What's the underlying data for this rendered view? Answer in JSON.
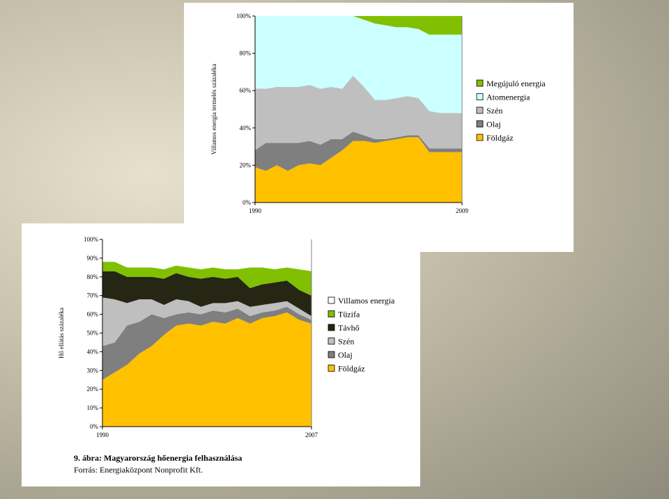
{
  "chart_data": [
    {
      "type": "area",
      "stacked": true,
      "ylabel": "Villamos energia termelés százaléka",
      "x": [
        1990,
        1991,
        1992,
        1993,
        1994,
        1995,
        1996,
        1997,
        1998,
        1999,
        2000,
        2001,
        2002,
        2003,
        2004,
        2005,
        2006,
        2007,
        2008,
        2009
      ],
      "x_tick_labels": [
        "1990",
        "2009"
      ],
      "y_tick_labels": [
        "0%",
        "20%",
        "40%",
        "60%",
        "80%",
        "100%"
      ],
      "ylim": [
        0,
        100
      ],
      "legend_position": "right",
      "series": [
        {
          "name": "Földgáz",
          "color": "#FFC000",
          "values": [
            19,
            17,
            20,
            17,
            20,
            21,
            20,
            24,
            28,
            33,
            33,
            32,
            33,
            34,
            35,
            35,
            27,
            27,
            27,
            27
          ]
        },
        {
          "name": "Olaj",
          "color": "#7F7F7F",
          "values": [
            9,
            15,
            12,
            15,
            12,
            12,
            11,
            10,
            6,
            5,
            3,
            2,
            1,
            1,
            1,
            1,
            2,
            2,
            2,
            2
          ]
        },
        {
          "name": "Szén",
          "color": "#BFBFBF",
          "values": [
            33,
            29,
            30,
            30,
            30,
            30,
            30,
            28,
            27,
            30,
            26,
            21,
            21,
            21,
            21,
            20,
            20,
            19,
            19,
            19
          ]
        },
        {
          "name": "Atomenergia",
          "color": "#CCFFFF",
          "values": [
            39,
            39,
            38,
            38,
            38,
            37,
            39,
            38,
            39,
            32,
            36,
            41,
            40,
            38,
            37,
            37,
            41,
            42,
            42,
            42
          ]
        },
        {
          "name": "Megújuló energia",
          "color": "#80C000",
          "values": [
            0,
            0,
            0,
            0,
            0,
            0,
            0,
            0,
            0,
            0,
            2,
            4,
            5,
            6,
            6,
            7,
            10,
            10,
            10,
            10
          ]
        }
      ]
    },
    {
      "type": "area",
      "stacked": true,
      "ylabel": "Hő ellátás százaléka",
      "x": [
        1990,
        1991,
        1992,
        1993,
        1994,
        1995,
        1996,
        1997,
        1998,
        1999,
        2000,
        2001,
        2002,
        2003,
        2004,
        2005,
        2006,
        2007
      ],
      "x_tick_labels": [
        "1990",
        "2007"
      ],
      "y_tick_labels": [
        "0%",
        "10%",
        "20%",
        "30%",
        "40%",
        "50%",
        "60%",
        "70%",
        "80%",
        "90%",
        "100%"
      ],
      "ylim": [
        0,
        100
      ],
      "legend_position": "right",
      "series": [
        {
          "name": "Földgáz",
          "color": "#FFC000",
          "values": [
            25,
            29,
            33,
            39,
            43,
            49,
            54,
            55,
            54,
            56,
            55,
            58,
            55,
            58,
            59,
            61,
            57,
            55
          ]
        },
        {
          "name": "Olaj",
          "color": "#7F7F7F",
          "values": [
            18,
            16,
            21,
            17,
            17,
            9,
            6,
            6,
            6,
            6,
            6,
            5,
            4,
            3,
            3,
            3,
            3,
            2
          ]
        },
        {
          "name": "Szén",
          "color": "#BFBFBF",
          "values": [
            26,
            23,
            12,
            12,
            8,
            7,
            8,
            6,
            4,
            4,
            5,
            4,
            5,
            4,
            4,
            3,
            3,
            2
          ]
        },
        {
          "name": "Távhő",
          "color": "#262614",
          "values": [
            14,
            15,
            14,
            12,
            12,
            14,
            14,
            13,
            15,
            14,
            13,
            13,
            10,
            11,
            11,
            11,
            10,
            11
          ]
        },
        {
          "name": "Tüzifa",
          "color": "#80C000",
          "values": [
            5,
            5,
            5,
            5,
            5,
            5,
            4,
            5,
            5,
            5,
            5,
            4,
            11,
            9,
            7,
            7,
            11,
            13
          ]
        },
        {
          "name": "Villamos energia",
          "color": "#FFFFFF",
          "values": [
            0,
            0,
            0,
            0,
            0,
            0,
            0,
            0,
            0,
            0,
            0,
            0,
            0,
            0,
            0,
            0,
            0,
            0
          ]
        }
      ]
    }
  ],
  "caption": {
    "title": "9. ábra: Magyarország hőenergia felhasználása",
    "source": "Forrás: Energiaközpont Nonprofit Kft."
  }
}
